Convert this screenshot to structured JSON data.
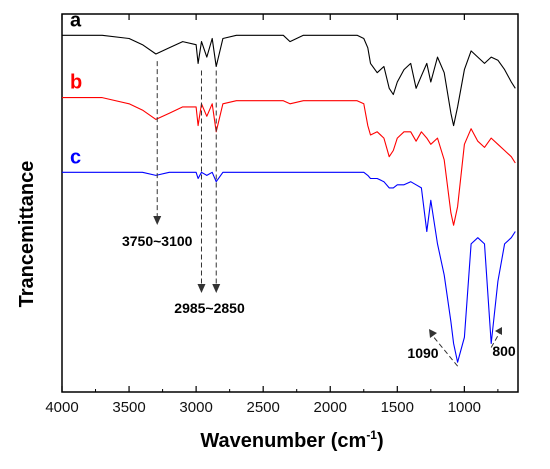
{
  "chart_data": {
    "type": "line",
    "title": "",
    "xlabel": "Wavenumber (cm",
    "xlabel_sup": "-1",
    "xlabel_close": ")",
    "ylabel": "Trancemittance",
    "xlim": [
      4000,
      600
    ],
    "x_reversed": true,
    "xticks": [
      4000,
      3500,
      3000,
      2500,
      2000,
      1500,
      1000
    ],
    "xtick_labels": [
      "4000",
      "3500",
      "3000",
      "2500",
      "2000",
      "1500",
      "1000"
    ],
    "y_ticks_shown": false,
    "grid": false,
    "legend": "none",
    "series": [
      {
        "name": "a",
        "color": "#000000",
        "x": [
          4000,
          3700,
          3500,
          3400,
          3300,
          3200,
          3100,
          3000,
          2985,
          2960,
          2920,
          2880,
          2850,
          2800,
          2700,
          2500,
          2350,
          2300,
          2200,
          2000,
          1800,
          1750,
          1720,
          1700,
          1650,
          1600,
          1560,
          1530,
          1500,
          1450,
          1400,
          1360,
          1320,
          1280,
          1250,
          1200,
          1150,
          1100,
          1080,
          1050,
          1000,
          950,
          900,
          850,
          800,
          750,
          700,
          650,
          620
        ],
        "y": [
          97,
          97,
          96,
          94,
          91,
          93,
          95,
          94,
          88,
          95,
          90,
          96,
          87,
          96,
          97,
          97,
          97,
          95,
          97,
          97,
          97,
          96,
          93,
          88,
          85,
          87,
          80,
          78,
          82,
          86,
          88,
          80,
          84,
          88,
          82,
          90,
          85,
          72,
          68,
          74,
          86,
          92,
          90,
          88,
          90,
          89,
          86,
          82,
          80
        ]
      },
      {
        "name": "b",
        "color": "#ff0000",
        "x": [
          4000,
          3700,
          3500,
          3400,
          3300,
          3200,
          3100,
          3000,
          2985,
          2960,
          2920,
          2880,
          2850,
          2800,
          2700,
          2500,
          2350,
          2300,
          2200,
          2000,
          1800,
          1750,
          1720,
          1700,
          1650,
          1600,
          1560,
          1530,
          1500,
          1450,
          1400,
          1360,
          1320,
          1280,
          1250,
          1200,
          1150,
          1100,
          1080,
          1050,
          1000,
          950,
          900,
          850,
          800,
          750,
          700,
          650,
          620
        ],
        "y": [
          77,
          77,
          75,
          73,
          70,
          72,
          74,
          74,
          68,
          75,
          71,
          75,
          66,
          75,
          76,
          76,
          76,
          75,
          76,
          76,
          76,
          75,
          68,
          65,
          66,
          64,
          58,
          60,
          64,
          66,
          66,
          63,
          66,
          64,
          62,
          64,
          57,
          40,
          36,
          42,
          62,
          67,
          63,
          61,
          64,
          62,
          60,
          58,
          56
        ]
      },
      {
        "name": "c",
        "color": "#0000ff",
        "x": [
          4000,
          3700,
          3500,
          3400,
          3300,
          3200,
          3100,
          3000,
          2985,
          2960,
          2920,
          2880,
          2850,
          2800,
          2700,
          2500,
          2350,
          2300,
          2200,
          2000,
          1800,
          1750,
          1720,
          1700,
          1650,
          1600,
          1560,
          1530,
          1500,
          1450,
          1400,
          1360,
          1320,
          1280,
          1250,
          1200,
          1150,
          1100,
          1080,
          1050,
          1000,
          950,
          900,
          850,
          800,
          750,
          700,
          650,
          620
        ],
        "y": [
          53,
          53,
          53,
          53,
          52,
          53,
          53,
          53,
          51,
          53,
          52,
          53,
          50,
          53,
          53,
          53,
          53,
          53,
          53,
          53,
          53,
          53,
          52,
          51,
          51,
          50,
          48,
          48,
          49,
          49,
          50,
          49,
          48,
          34,
          44,
          30,
          20,
          5,
          -2,
          -8,
          0,
          30,
          32,
          30,
          -2,
          18,
          30,
          32,
          34
        ]
      }
    ],
    "curve_labels": [
      "a",
      "b",
      "c"
    ],
    "annotations": [
      {
        "text": "3750~3100",
        "x": [
          3290
        ]
      },
      {
        "text": "2985~2850",
        "x": [
          2960,
          2850
        ]
      },
      {
        "text": "1090"
      },
      {
        "text": "800"
      }
    ]
  }
}
